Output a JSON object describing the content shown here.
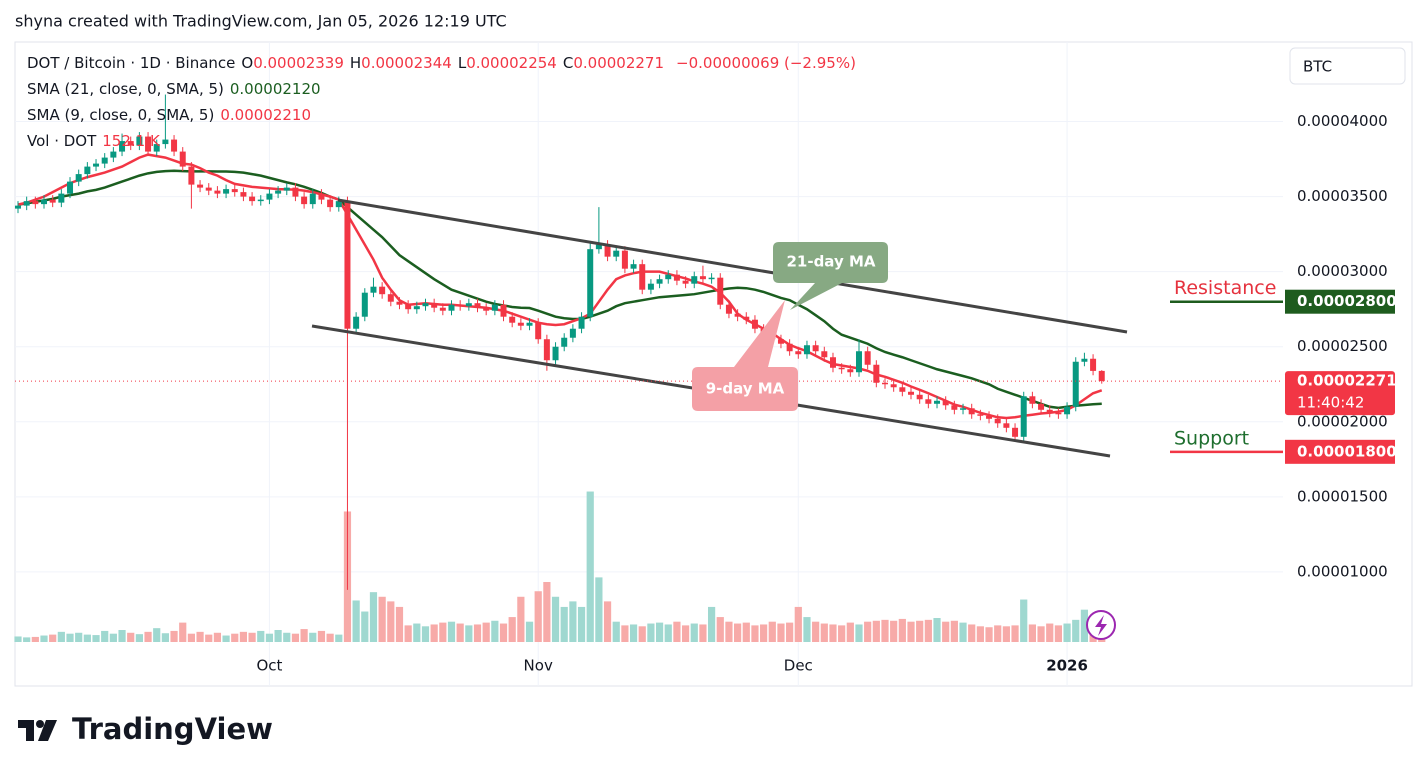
{
  "header": {
    "credit": "shyna created with TradingView.com, Jan 05, 2026 12:19 UTC"
  },
  "chart_data": {
    "type": "candlestick",
    "symbol": "DOT / Bitcoin · 1D · Binance",
    "ohlc_labels": [
      {
        "key": "O",
        "value": "0.00002339"
      },
      {
        "key": "H",
        "value": "0.00002344"
      },
      {
        "key": "L",
        "value": "0.00002254"
      },
      {
        "key": "C",
        "value": "0.00002271"
      }
    ],
    "change": "−0.00000069 (−2.95%)",
    "currency": "BTC",
    "up_color": "#089981",
    "down_color": "#f23645",
    "categories": [
      null,
      null,
      null,
      null,
      null,
      null,
      null,
      null,
      null,
      null,
      null,
      null,
      null,
      null,
      null,
      null,
      null,
      null,
      null,
      null,
      null,
      null,
      null,
      null,
      null,
      null,
      null,
      null,
      null,
      "Oct",
      null,
      null,
      null,
      null,
      null,
      null,
      null,
      null,
      null,
      null,
      null,
      null,
      null,
      null,
      null,
      null,
      null,
      null,
      null,
      null,
      null,
      null,
      null,
      null,
      null,
      null,
      null,
      null,
      null,
      null,
      "Nov",
      null,
      null,
      null,
      null,
      null,
      null,
      null,
      null,
      null,
      null,
      null,
      null,
      null,
      null,
      null,
      null,
      null,
      null,
      null,
      null,
      null,
      null,
      null,
      null,
      null,
      null,
      null,
      null,
      null,
      "Dec",
      null,
      null,
      null,
      null,
      null,
      null,
      null,
      null,
      null,
      null,
      null,
      null,
      null,
      null,
      null,
      null,
      null,
      null,
      null,
      null,
      null,
      null,
      null,
      null,
      null,
      null,
      null,
      null,
      null,
      null,
      "2026",
      null,
      null,
      null,
      null
    ],
    "open": [
      3.42e-05,
      3.44e-05,
      3.47e-05,
      3.45e-05,
      3.48e-05,
      3.46e-05,
      3.52e-05,
      3.6e-05,
      3.65e-05,
      3.7e-05,
      3.72e-05,
      3.76e-05,
      3.8e-05,
      3.87e-05,
      3.84e-05,
      3.9e-05,
      3.8e-05,
      3.85e-05,
      3.88e-05,
      3.8e-05,
      3.7e-05,
      3.58e-05,
      3.56e-05,
      3.54e-05,
      3.52e-05,
      3.55e-05,
      3.53e-05,
      3.5e-05,
      3.47e-05,
      3.48e-05,
      3.52e-05,
      3.54e-05,
      3.56e-05,
      3.5e-05,
      3.45e-05,
      3.52e-05,
      3.48e-05,
      3.43e-05,
      3.47e-05,
      2.62e-05,
      2.7e-05,
      2.86e-05,
      2.9e-05,
      2.85e-05,
      2.8e-05,
      2.78e-05,
      2.75e-05,
      2.77e-05,
      2.79e-05,
      2.76e-05,
      2.74e-05,
      2.78e-05,
      2.77e-05,
      2.79e-05,
      2.76e-05,
      2.74e-05,
      2.78e-05,
      2.7e-05,
      2.66e-05,
      2.64e-05,
      2.66e-05,
      2.55e-05,
      2.41e-05,
      2.5e-05,
      2.56e-05,
      2.62e-05,
      2.7e-05,
      3.15e-05,
      3.18e-05,
      3.1e-05,
      3.14e-05,
      3.02e-05,
      3.05e-05,
      2.88e-05,
      2.92e-05,
      2.95e-05,
      2.98e-05,
      2.94e-05,
      2.92e-05,
      2.97e-05,
      2.95e-05,
      2.96e-05,
      2.78e-05,
      2.72e-05,
      2.7e-05,
      2.68e-05,
      2.62e-05,
      2.6e-05,
      2.55e-05,
      2.52e-05,
      2.47e-05,
      2.45e-05,
      2.51e-05,
      2.47e-05,
      2.43e-05,
      2.36e-05,
      2.35e-05,
      2.33e-05,
      2.47e-05,
      2.38e-05,
      2.26e-05,
      2.25e-05,
      2.23e-05,
      2.2e-05,
      2.18e-05,
      2.15e-05,
      2.12e-05,
      2.14e-05,
      2.11e-05,
      2.08e-05,
      2.09e-05,
      2.05e-05,
      2.04e-05,
      2.02e-05,
      1.99e-05,
      1.96e-05,
      1.9e-05,
      2.17e-05,
      2.12e-05,
      2.08e-05,
      2.06e-05,
      2.05e-05,
      2.1e-05,
      2.4e-05,
      2.42e-05,
      2.339e-05
    ],
    "high": [
      3.47e-05,
      3.5e-05,
      3.5e-05,
      3.51e-05,
      3.51e-05,
      3.55e-05,
      3.63e-05,
      3.68e-05,
      3.73e-05,
      3.75e-05,
      3.79e-05,
      3.83e-05,
      3.92e-05,
      3.9e-05,
      3.93e-05,
      3.93e-05,
      3.88e-05,
      4.18e-05,
      3.91e-05,
      3.83e-05,
      3.73e-05,
      3.61e-05,
      3.59e-05,
      3.57e-05,
      3.58e-05,
      3.58e-05,
      3.56e-05,
      3.53e-05,
      3.51e-05,
      3.55e-05,
      3.57e-05,
      3.59e-05,
      3.59e-05,
      3.53e-05,
      3.55e-05,
      3.55e-05,
      3.51e-05,
      3.5e-05,
      3.5e-05,
      2.73e-05,
      2.89e-05,
      2.96e-05,
      2.93e-05,
      2.88e-05,
      2.83e-05,
      2.81e-05,
      2.8e-05,
      2.82e-05,
      2.82e-05,
      2.79e-05,
      2.81e-05,
      2.81e-05,
      2.82e-05,
      2.82e-05,
      2.79e-05,
      2.81e-05,
      2.81e-05,
      2.73e-05,
      2.69e-05,
      2.69e-05,
      2.69e-05,
      2.58e-05,
      2.53e-05,
      2.59e-05,
      2.65e-05,
      2.73e-05,
      3.2e-05,
      3.43e-05,
      3.21e-05,
      3.17e-05,
      3.17e-05,
      3.08e-05,
      3.08e-05,
      2.95e-05,
      2.98e-05,
      3.01e-05,
      3.01e-05,
      2.97e-05,
      3e-05,
      3.04e-05,
      2.99e-05,
      2.99e-05,
      2.81e-05,
      2.75e-05,
      2.73e-05,
      2.71e-05,
      2.65e-05,
      2.63e-05,
      2.58e-05,
      2.55e-05,
      2.5e-05,
      2.54e-05,
      2.54e-05,
      2.5e-05,
      2.46e-05,
      2.39e-05,
      2.38e-05,
      2.55e-05,
      2.5e-05,
      2.41e-05,
      2.29e-05,
      2.28e-05,
      2.26e-05,
      2.23e-05,
      2.21e-05,
      2.18e-05,
      2.17e-05,
      2.17e-05,
      2.14e-05,
      2.12e-05,
      2.12e-05,
      2.08e-05,
      2.07e-05,
      2.05e-05,
      2.02e-05,
      1.99e-05,
      2.2e-05,
      2.2e-05,
      2.15e-05,
      2.11e-05,
      2.09e-05,
      2.13e-05,
      2.43e-05,
      2.46e-05,
      2.45e-05,
      2.344e-05
    ],
    "low": [
      3.39e-05,
      3.41e-05,
      3.42e-05,
      3.42e-05,
      3.43e-05,
      3.43e-05,
      3.49e-05,
      3.57e-05,
      3.62e-05,
      3.67e-05,
      3.69e-05,
      3.73e-05,
      3.77e-05,
      3.81e-05,
      3.81e-05,
      3.77e-05,
      3.77e-05,
      3.82e-05,
      3.77e-05,
      3.67e-05,
      3.42e-05,
      3.53e-05,
      3.51e-05,
      3.49e-05,
      3.49e-05,
      3.5e-05,
      3.47e-05,
      3.44e-05,
      3.44e-05,
      3.45e-05,
      3.49e-05,
      3.51e-05,
      3.47e-05,
      3.42e-05,
      3.42e-05,
      3.45e-05,
      3.4e-05,
      3.4e-05,
      8.8e-06,
      2.59e-05,
      2.67e-05,
      2.83e-05,
      2.82e-05,
      2.77e-05,
      2.75e-05,
      2.72e-05,
      2.72e-05,
      2.74e-05,
      2.73e-05,
      2.71e-05,
      2.71e-05,
      2.74e-05,
      2.74e-05,
      2.73e-05,
      2.71e-05,
      2.71e-05,
      2.67e-05,
      2.63e-05,
      2.61e-05,
      2.61e-05,
      2.52e-05,
      2.34e-05,
      2.38e-05,
      2.47e-05,
      2.53e-05,
      2.59e-05,
      2.67e-05,
      3.12e-05,
      3.07e-05,
      3.07e-05,
      2.99e-05,
      2.99e-05,
      2.85e-05,
      2.85e-05,
      2.89e-05,
      2.92e-05,
      2.91e-05,
      2.89e-05,
      2.89e-05,
      2.92e-05,
      2.92e-05,
      2.75e-05,
      2.69e-05,
      2.67e-05,
      2.65e-05,
      2.59e-05,
      2.57e-05,
      2.52e-05,
      2.49e-05,
      2.44e-05,
      2.42e-05,
      2.42e-05,
      2.44e-05,
      2.4e-05,
      2.33e-05,
      2.32e-05,
      2.3e-05,
      2.3e-05,
      2.35e-05,
      2.23e-05,
      2.22e-05,
      2.2e-05,
      2.17e-05,
      2.15e-05,
      2.12e-05,
      2.09e-05,
      2.09e-05,
      2.08e-05,
      2.05e-05,
      2.05e-05,
      2.02e-05,
      2.01e-05,
      1.99e-05,
      1.96e-05,
      1.93e-05,
      1.87e-05,
      1.87e-05,
      2.09e-05,
      2.05e-05,
      2.03e-05,
      2.02e-05,
      2.02e-05,
      2.07e-05,
      2.37e-05,
      2.31e-05,
      2.254e-05
    ],
    "close": [
      3.44e-05,
      3.47e-05,
      3.45e-05,
      3.48e-05,
      3.46e-05,
      3.52e-05,
      3.6e-05,
      3.65e-05,
      3.7e-05,
      3.72e-05,
      3.76e-05,
      3.8e-05,
      3.87e-05,
      3.84e-05,
      3.9e-05,
      3.8e-05,
      3.85e-05,
      3.88e-05,
      3.8e-05,
      3.7e-05,
      3.58e-05,
      3.56e-05,
      3.54e-05,
      3.52e-05,
      3.55e-05,
      3.53e-05,
      3.5e-05,
      3.47e-05,
      3.48e-05,
      3.52e-05,
      3.54e-05,
      3.56e-05,
      3.5e-05,
      3.45e-05,
      3.52e-05,
      3.48e-05,
      3.43e-05,
      3.47e-05,
      2.62e-05,
      2.7e-05,
      2.86e-05,
      2.9e-05,
      2.85e-05,
      2.8e-05,
      2.78e-05,
      2.75e-05,
      2.77e-05,
      2.79e-05,
      2.76e-05,
      2.74e-05,
      2.78e-05,
      2.77e-05,
      2.79e-05,
      2.76e-05,
      2.74e-05,
      2.78e-05,
      2.7e-05,
      2.66e-05,
      2.64e-05,
      2.66e-05,
      2.55e-05,
      2.41e-05,
      2.5e-05,
      2.56e-05,
      2.62e-05,
      2.7e-05,
      3.15e-05,
      3.18e-05,
      3.1e-05,
      3.14e-05,
      3.02e-05,
      3.05e-05,
      2.88e-05,
      2.92e-05,
      2.95e-05,
      2.98e-05,
      2.94e-05,
      2.92e-05,
      2.97e-05,
      2.95e-05,
      2.96e-05,
      2.78e-05,
      2.72e-05,
      2.7e-05,
      2.68e-05,
      2.62e-05,
      2.6e-05,
      2.55e-05,
      2.52e-05,
      2.47e-05,
      2.45e-05,
      2.51e-05,
      2.47e-05,
      2.43e-05,
      2.36e-05,
      2.35e-05,
      2.33e-05,
      2.47e-05,
      2.38e-05,
      2.26e-05,
      2.25e-05,
      2.23e-05,
      2.2e-05,
      2.18e-05,
      2.15e-05,
      2.12e-05,
      2.14e-05,
      2.11e-05,
      2.08e-05,
      2.09e-05,
      2.05e-05,
      2.04e-05,
      2.02e-05,
      1.99e-05,
      1.96e-05,
      1.9e-05,
      2.17e-05,
      2.12e-05,
      2.08e-05,
      2.06e-05,
      2.05e-05,
      2.1e-05,
      2.4e-05,
      2.42e-05,
      2.339e-05,
      2.271e-05
    ],
    "volume": {
      "name": "Vol · DOT",
      "last_label": "152.1 K",
      "up_color": "#9fd8d0",
      "down_color": "#f7aaa8",
      "ylim": [
        0,
        6500
      ],
      "values": [
        60,
        50,
        55,
        70,
        80,
        110,
        90,
        100,
        80,
        75,
        120,
        90,
        130,
        100,
        85,
        110,
        150,
        95,
        120,
        210,
        90,
        110,
        80,
        100,
        70,
        90,
        110,
        100,
        120,
        90,
        130,
        100,
        90,
        140,
        100,
        120,
        90,
        80,
        1414,
        450,
        330,
        540,
        490,
        440,
        380,
        180,
        200,
        170,
        190,
        210,
        220,
        200,
        180,
        190,
        210,
        230,
        200,
        270,
        490,
        220,
        550,
        650,
        490,
        380,
        440,
        380,
        1630,
        700,
        440,
        220,
        180,
        190,
        170,
        200,
        210,
        190,
        220,
        180,
        200,
        190,
        380,
        270,
        220,
        200,
        210,
        180,
        190,
        220,
        200,
        210,
        380,
        270,
        220,
        200,
        190,
        180,
        210,
        190,
        220,
        230,
        240,
        230,
        250,
        220,
        230,
        240,
        260,
        220,
        230,
        210,
        190,
        170,
        160,
        180,
        170,
        180,
        460,
        190,
        170,
        200,
        180,
        200,
        240,
        350,
        270,
        152.1
      ]
    },
    "series": [
      {
        "name": "SMA (21, close, 0, SMA, 5)",
        "value_label": "0.00002120",
        "color": "#1b5e20",
        "values": [
          3.447e-05,
          3.455e-05,
          3.465e-05,
          3.475e-05,
          3.485e-05,
          3.5e-05,
          3.51e-05,
          3.52e-05,
          3.535e-05,
          3.545e-05,
          3.56e-05,
          3.58e-05,
          3.6e-05,
          3.62e-05,
          3.64e-05,
          3.655e-05,
          3.665e-05,
          3.67e-05,
          3.672e-05,
          3.67e-05,
          3.668e-05,
          3.668e-05,
          3.668e-05,
          3.667e-05,
          3.667e-05,
          3.665e-05,
          3.66e-05,
          3.65e-05,
          3.64e-05,
          3.625e-05,
          3.61e-05,
          3.595e-05,
          3.582e-05,
          3.565e-05,
          3.545e-05,
          3.525e-05,
          3.5e-05,
          3.48e-05,
          3.43e-05,
          3.38e-05,
          3.33e-05,
          3.28e-05,
          3.23e-05,
          3.17e-05,
          3.11e-05,
          3.07e-05,
          3.03e-05,
          2.99e-05,
          2.95e-05,
          2.915e-05,
          2.88e-05,
          2.86e-05,
          2.84e-05,
          2.82e-05,
          2.8e-05,
          2.785e-05,
          2.775e-05,
          2.765e-05,
          2.76e-05,
          2.758e-05,
          2.74e-05,
          2.72e-05,
          2.7e-05,
          2.69e-05,
          2.685e-05,
          2.685e-05,
          2.7e-05,
          2.72e-05,
          2.74e-05,
          2.77e-05,
          2.79e-05,
          2.8e-05,
          2.81e-05,
          2.82e-05,
          2.83e-05,
          2.835e-05,
          2.84e-05,
          2.845e-05,
          2.85e-05,
          2.86e-05,
          2.87e-05,
          2.88e-05,
          2.888e-05,
          2.893e-05,
          2.89e-05,
          2.88e-05,
          2.865e-05,
          2.845e-05,
          2.825e-05,
          2.81e-05,
          2.78e-05,
          2.75e-05,
          2.71e-05,
          2.67e-05,
          2.62e-05,
          2.58e-05,
          2.56e-05,
          2.54e-05,
          2.52e-05,
          2.49e-05,
          2.465e-05,
          2.447e-05,
          2.43e-05,
          2.41e-05,
          2.39e-05,
          2.37e-05,
          2.35e-05,
          2.335e-05,
          2.32e-05,
          2.305e-05,
          2.29e-05,
          2.27e-05,
          2.25e-05,
          2.22e-05,
          2.2e-05,
          2.18e-05,
          2.16e-05,
          2.14e-05,
          2.12e-05,
          2.1e-05,
          2.093e-05,
          2.1e-05,
          2.107e-05,
          2.112e-05,
          2.117e-05,
          2.12e-05
        ]
      },
      {
        "name": "SMA (9, close, 0, SMA, 5)",
        "value_label": "0.00002210",
        "color": "#f23645",
        "values": [
          3.447e-05,
          3.46e-05,
          3.48e-05,
          3.5e-05,
          3.53e-05,
          3.56e-05,
          3.59e-05,
          3.61e-05,
          3.63e-05,
          3.645e-05,
          3.66e-05,
          3.68e-05,
          3.7e-05,
          3.73e-05,
          3.76e-05,
          3.78e-05,
          3.77e-05,
          3.76e-05,
          3.74e-05,
          3.72e-05,
          3.713e-05,
          3.69e-05,
          3.66e-05,
          3.64e-05,
          3.61e-05,
          3.585e-05,
          3.575e-05,
          3.565e-05,
          3.56e-05,
          3.555e-05,
          3.55e-05,
          3.548e-05,
          3.547e-05,
          3.54e-05,
          3.53e-05,
          3.515e-05,
          3.5e-05,
          3.48e-05,
          3.38e-05,
          3.28e-05,
          3.18e-05,
          3.08e-05,
          2.96e-05,
          2.88e-05,
          2.81e-05,
          2.78e-05,
          2.785e-05,
          2.79e-05,
          2.785e-05,
          2.78e-05,
          2.78e-05,
          2.775e-05,
          2.77e-05,
          2.765e-05,
          2.76e-05,
          2.75e-05,
          2.74e-05,
          2.72e-05,
          2.7e-05,
          2.68e-05,
          2.66e-05,
          2.65e-05,
          2.645e-05,
          2.65e-05,
          2.67e-05,
          2.69e-05,
          2.72e-05,
          2.8e-05,
          2.88e-05,
          2.95e-05,
          2.975e-05,
          2.99e-05,
          3e-05,
          3e-05,
          3e-05,
          2.985e-05,
          2.97e-05,
          2.955e-05,
          2.935e-05,
          2.92e-05,
          2.9e-05,
          2.86e-05,
          2.8e-05,
          2.72e-05,
          2.68e-05,
          2.65e-05,
          2.62e-05,
          2.59e-05,
          2.55e-05,
          2.513e-05,
          2.49e-05,
          2.47e-05,
          2.44e-05,
          2.41e-05,
          2.385e-05,
          2.375e-05,
          2.365e-05,
          2.355e-05,
          2.34e-05,
          2.315e-05,
          2.3e-05,
          2.28e-05,
          2.26e-05,
          2.235e-05,
          2.213e-05,
          2.19e-05,
          2.165e-05,
          2.14e-05,
          2.115e-05,
          2.1e-05,
          2.08e-05,
          2.06e-05,
          2.045e-05,
          2.03e-05,
          2.025e-05,
          2.03e-05,
          2.04e-05,
          2.047e-05,
          2.055e-05,
          2.06e-05,
          2.067e-05,
          2.08e-05,
          2.11e-05,
          2.15e-05,
          2.19e-05,
          2.21e-05
        ]
      }
    ],
    "ylim": [
      2.4e-06,
      4.53e-05
    ],
    "yticks": [
      {
        "value": 1e-05,
        "label": "0.00001000"
      },
      {
        "value": 1.5e-05,
        "label": "0.00001500"
      },
      {
        "value": 2e-05,
        "label": "0.00002000"
      },
      {
        "value": 2.5e-05,
        "label": "0.00002500"
      },
      {
        "value": 3e-05,
        "label": "0.00003000"
      },
      {
        "value": 3.5e-05,
        "label": "0.00003500"
      },
      {
        "value": 4e-05,
        "label": "0.00004000"
      }
    ],
    "grid": true,
    "levels": [
      {
        "name": "Resistance",
        "value": 2.8e-05,
        "label": "0.00002800",
        "color": "#1e5c1e",
        "text_color": "#e5323e"
      },
      {
        "name": "Support",
        "value": 1.8e-05,
        "label": "0.00001800",
        "color": "#f23645",
        "text_color": "#1e6e2e"
      }
    ],
    "last_price": {
      "label": "0.00002271",
      "countdown": "11:40:42"
    },
    "annotations": [
      {
        "text": "21-day MA"
      },
      {
        "text": "9-day MA"
      }
    ]
  },
  "footer": {
    "brand": "TradingView"
  }
}
